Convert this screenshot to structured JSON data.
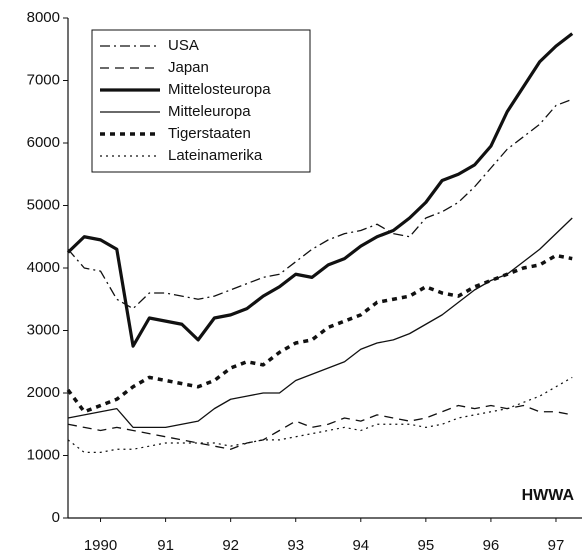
{
  "chart_data": {
    "type": "line",
    "annotation": "HWWA",
    "x": [
      1990,
      1990.25,
      1990.5,
      1990.75,
      1991,
      1991.25,
      1991.5,
      1991.75,
      1992,
      1992.25,
      1992.5,
      1992.75,
      1993,
      1993.25,
      1993.5,
      1993.75,
      1994,
      1994.25,
      1994.5,
      1994.75,
      1995,
      1995.25,
      1995.5,
      1995.75,
      1996,
      1996.25,
      1996.5,
      1996.75,
      1997,
      1997.25,
      1997.5,
      1997.75
    ],
    "xlim": [
      1990,
      1997.9
    ],
    "xticks": [
      {
        "value": 1990.5,
        "label": "1990"
      },
      {
        "value": 1991.5,
        "label": "91"
      },
      {
        "value": 1992.5,
        "label": "92"
      },
      {
        "value": 1993.5,
        "label": "93"
      },
      {
        "value": 1994.5,
        "label": "94"
      },
      {
        "value": 1995.5,
        "label": "95"
      },
      {
        "value": 1996.5,
        "label": "96"
      },
      {
        "value": 1997.5,
        "label": "97"
      }
    ],
    "ylim": [
      0,
      8000
    ],
    "yticks": [
      0,
      1000,
      2000,
      3000,
      4000,
      5000,
      6000,
      7000,
      8000
    ],
    "legend": "upper left",
    "series": [
      {
        "name": "USA",
        "color": "#111",
        "linestyle": "dashdot",
        "linewidth": 1.3,
        "values": [
          4300,
          4000,
          3950,
          3500,
          3350,
          3600,
          3600,
          3550,
          3500,
          3550,
          3650,
          3750,
          3850,
          3900,
          4100,
          4300,
          4450,
          4550,
          4600,
          4700,
          4550,
          4500,
          4800,
          4900,
          5050,
          5300,
          5600,
          5900,
          6100,
          6300,
          6600,
          6700
        ]
      },
      {
        "name": "Japan",
        "color": "#111",
        "linestyle": "dashed",
        "linewidth": 1.3,
        "values": [
          1500,
          1450,
          1400,
          1450,
          1400,
          1350,
          1300,
          1250,
          1200,
          1150,
          1100,
          1200,
          1250,
          1400,
          1550,
          1450,
          1500,
          1600,
          1550,
          1650,
          1600,
          1550,
          1600,
          1700,
          1800,
          1750,
          1800,
          1750,
          1800,
          1700,
          1700,
          1650
        ]
      },
      {
        "name": "Mittelosteuropa",
        "color": "#111",
        "linestyle": "solid",
        "linewidth": 3.2,
        "values": [
          4250,
          4500,
          4450,
          4300,
          2750,
          3200,
          3150,
          3100,
          2850,
          3200,
          3250,
          3350,
          3550,
          3700,
          3900,
          3850,
          4050,
          4150,
          4350,
          4500,
          4600,
          4800,
          5050,
          5400,
          5500,
          5650,
          5950,
          6500,
          6900,
          7300,
          7550,
          7750
        ]
      },
      {
        "name": "Mitteleuropa",
        "color": "#111",
        "linestyle": "solid",
        "linewidth": 1.3,
        "values": [
          1600,
          1650,
          1700,
          1750,
          1450,
          1450,
          1450,
          1500,
          1550,
          1750,
          1900,
          1950,
          2000,
          2000,
          2200,
          2300,
          2400,
          2500,
          2700,
          2800,
          2850,
          2950,
          3100,
          3250,
          3450,
          3650,
          3800,
          3900,
          4100,
          4300,
          4550,
          4800
        ]
      },
      {
        "name": "Tigerstaaten",
        "color": "#111",
        "linestyle": "dotted",
        "linewidth": 3.5,
        "values": [
          2050,
          1700,
          1800,
          1900,
          2100,
          2250,
          2200,
          2150,
          2100,
          2200,
          2400,
          2500,
          2450,
          2650,
          2800,
          2850,
          3050,
          3150,
          3250,
          3450,
          3500,
          3550,
          3700,
          3600,
          3550,
          3700,
          3800,
          3900,
          4000,
          4050,
          4200,
          4150
        ]
      },
      {
        "name": "Lateinamerika",
        "color": "#111",
        "linestyle": "dotted",
        "linewidth": 1.2,
        "values": [
          1250,
          1050,
          1050,
          1100,
          1100,
          1150,
          1200,
          1200,
          1200,
          1200,
          1150,
          1200,
          1250,
          1250,
          1300,
          1350,
          1400,
          1450,
          1400,
          1500,
          1500,
          1500,
          1450,
          1500,
          1600,
          1650,
          1700,
          1750,
          1850,
          1950,
          2100,
          2250
        ]
      }
    ]
  }
}
